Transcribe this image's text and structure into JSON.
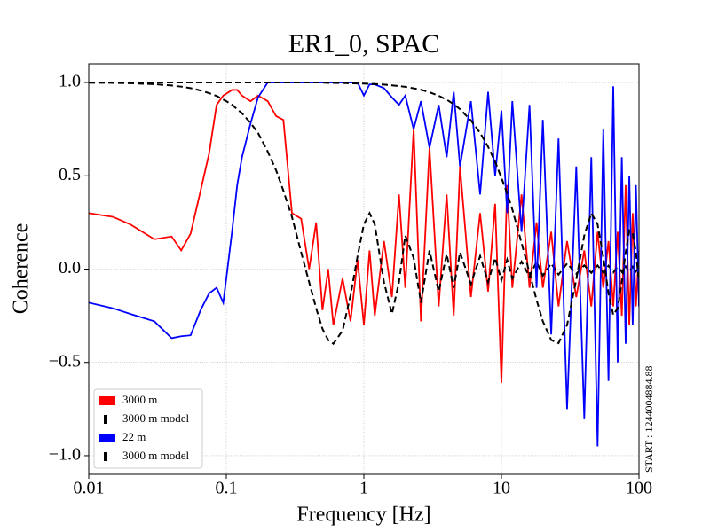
{
  "chart_data": {
    "type": "line",
    "title": "ER1_0, SPAC",
    "xlabel": "Frequency [Hz]",
    "ylabel": "Coherence",
    "annotation": "START : 1244004884.88",
    "xscale": "log",
    "grid": true,
    "legend": "lower left",
    "xlim": [
      0.01,
      100
    ],
    "xticks": [
      0.01,
      0.1,
      1,
      10,
      100
    ],
    "ylim": [
      -1.1,
      1.1
    ],
    "yticks": [
      {
        "value": -1,
        "label": "−1.0"
      },
      {
        "value": -0.5,
        "label": "−0.5"
      },
      {
        "value": 0,
        "label": "0.0"
      },
      0.5,
      {
        "value": 1,
        "label": "1.0"
      }
    ],
    "x": [
      0.01,
      0.015,
      0.02,
      0.03,
      0.04,
      0.047,
      0.055,
      0.065,
      0.075,
      0.085,
      0.095,
      0.1,
      0.11,
      0.12,
      0.13,
      0.15,
      0.17,
      0.2,
      0.23,
      0.26,
      0.3,
      0.35,
      0.4,
      0.45,
      0.5,
      0.55,
      0.6,
      0.7,
      0.8,
      0.9,
      1,
      1.1,
      1.2,
      1.4,
      1.6,
      1.8,
      2,
      2.3,
      2.6,
      3,
      3.5,
      4,
      4.5,
      5,
      6,
      7,
      8,
      9,
      10,
      11,
      12,
      14,
      16,
      18,
      20,
      23,
      26,
      30,
      35,
      40,
      45,
      50,
      55,
      60,
      65,
      70,
      75,
      80,
      85,
      90,
      95,
      100
    ],
    "series": [
      {
        "name": "3000 m",
        "color": "#ff0000",
        "linestyle": "solid",
        "values": [
          0.3,
          0.28,
          0.24,
          0.16,
          0.175,
          0.1,
          0.19,
          0.42,
          0.62,
          0.88,
          0.93,
          0.94,
          0.96,
          0.96,
          0.93,
          0.9,
          0.93,
          0.9,
          0.82,
          0.8,
          0.3,
          0.27,
          0,
          0.25,
          -0.22,
          0,
          -0.3,
          -0.05,
          -0.28,
          0.05,
          -0.3,
          0.1,
          -0.25,
          0.15,
          -0.15,
          0.4,
          -0.1,
          0.75,
          -0.28,
          0.65,
          -0.2,
          0.4,
          -0.25,
          0.55,
          -0.15,
          0.3,
          -0.12,
          0.35,
          -0.61,
          0.45,
          -0.1,
          0.4,
          -0.1,
          0.25,
          -0.1,
          0.2,
          -0.2,
          0.15,
          -0.15,
          0.1,
          -0.2,
          0.2,
          -0.1,
          0.15,
          -0.2,
          0.2,
          -0.25,
          0.45,
          -0.3,
          0.3,
          -0.2,
          0.1
        ]
      },
      {
        "name": "3000 m model",
        "color": "#000000",
        "linestyle": "dashed",
        "values": [
          0.999,
          0.998,
          0.996,
          0.991,
          0.984,
          0.978,
          0.97,
          0.957,
          0.943,
          0.928,
          0.909,
          0.9,
          0.881,
          0.857,
          0.835,
          0.783,
          0.73,
          0.63,
          0.53,
          0.42,
          0.28,
          0.09,
          -0.07,
          -0.21,
          -0.32,
          -0.38,
          -0.4,
          -0.33,
          -0.14,
          0.07,
          0.24,
          0.3,
          0.24,
          -0.07,
          -0.24,
          -0.07,
          0.18,
          0.06,
          -0.18,
          0.1,
          -0.12,
          0.08,
          -0.1,
          0.09,
          -0.08,
          0.07,
          -0.07,
          0.06,
          -0.06,
          0.05,
          -0.05,
          0.04,
          -0.04,
          0.04,
          -0.035,
          0.03,
          -0.03,
          0.03,
          -0.025,
          0.02,
          -0.02,
          0.02,
          -0.02,
          0.018,
          -0.018,
          0.015,
          -0.015,
          0.015,
          -0.014,
          0.013,
          -0.013,
          0.012
        ]
      },
      {
        "name": "22 m",
        "color": "#0000ff",
        "linestyle": "solid",
        "values": [
          -0.18,
          -0.21,
          -0.24,
          -0.28,
          -0.37,
          -0.36,
          -0.355,
          -0.22,
          -0.13,
          -0.1,
          -0.18,
          -0.05,
          0.2,
          0.45,
          0.6,
          0.78,
          0.92,
          1.0,
          1.0,
          1.0,
          1,
          1,
          1,
          1,
          1,
          1,
          1,
          1,
          1,
          1,
          0.93,
          0.99,
          0.99,
          0.97,
          0.92,
          0.88,
          0.93,
          0.75,
          0.9,
          0.65,
          0.88,
          0.6,
          0.95,
          0.55,
          0.9,
          0.4,
          0.95,
          0.5,
          0.85,
          0.3,
          0.9,
          0.2,
          0.88,
          -0.1,
          0.8,
          -0.35,
          0.7,
          -0.75,
          0.55,
          -0.8,
          0.6,
          -0.95,
          0.75,
          -0.6,
          0.98,
          -0.5,
          0.6,
          -0.4,
          0.5,
          -0.3,
          0.45,
          -0.2
        ]
      },
      {
        "name": "3000 m model",
        "color": "#000000",
        "linestyle": "dashed",
        "values": [
          1,
          1,
          1,
          1,
          1,
          1,
          1,
          1,
          1,
          1,
          1,
          1,
          1,
          1,
          1,
          1,
          1,
          1,
          1,
          1,
          1,
          1,
          1,
          1,
          1,
          0.998,
          0.998,
          0.997,
          0.996,
          0.995,
          0.994,
          0.993,
          0.992,
          0.989,
          0.985,
          0.981,
          0.977,
          0.969,
          0.961,
          0.948,
          0.929,
          0.908,
          0.884,
          0.857,
          0.797,
          0.73,
          0.656,
          0.575,
          0.49,
          0.405,
          0.32,
          0.14,
          -0.02,
          -0.165,
          -0.28,
          -0.38,
          -0.397,
          -0.3,
          -0.055,
          0.18,
          0.3,
          0.24,
          0.065,
          -0.13,
          -0.245,
          -0.21,
          -0.07,
          0.09,
          0.207,
          0.19,
          0.09,
          -0.07
        ]
      }
    ]
  }
}
